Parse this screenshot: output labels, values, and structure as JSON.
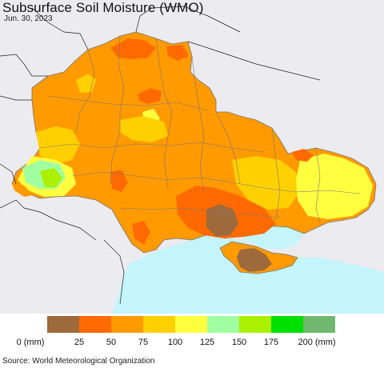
{
  "title": "Subsurface Soil Moisture (WMO)",
  "date": "Jun. 30, 2023",
  "source": "Source: World Meteorological Organization",
  "legend": {
    "colors": [
      "#9e6a3c",
      "#ff6a00",
      "#ff9a00",
      "#ffd000",
      "#ffff40",
      "#a0ffa0",
      "#aaf000",
      "#00e000",
      "#70b870"
    ],
    "labels": [
      "0 (mm)",
      "25",
      "50",
      "75",
      "100",
      "125",
      "150",
      "175",
      "200 (mm)"
    ]
  },
  "palette": {
    "sea": "#c4f4fc",
    "outside": "#ecebef",
    "border": "#777777",
    "very_dry": "#9e6a3c",
    "dry_orange": "#ff6a00",
    "orange": "#ff9a00",
    "gold": "#ffd000",
    "yellow": "#ffff40",
    "light_green": "#a0ffa0",
    "lime": "#aaf000"
  }
}
